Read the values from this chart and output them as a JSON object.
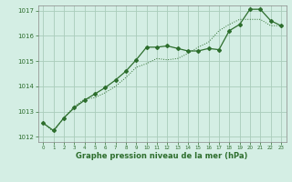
{
  "title": "",
  "xlabel": "Graphe pression niveau de la mer (hPa)",
  "background_color": "#d4eee4",
  "grid_color": "#aaccbb",
  "line_color": "#2d6e2d",
  "xlim": [
    -0.5,
    23.5
  ],
  "ylim": [
    1011.8,
    1017.2
  ],
  "yticks": [
    1012,
    1013,
    1014,
    1015,
    1016,
    1017
  ],
  "xticks": [
    0,
    1,
    2,
    3,
    4,
    5,
    6,
    7,
    8,
    9,
    10,
    11,
    12,
    13,
    14,
    15,
    16,
    17,
    18,
    19,
    20,
    21,
    22,
    23
  ],
  "line1_x": [
    0,
    1,
    2,
    3,
    4,
    5,
    6,
    7,
    8,
    9,
    10,
    11,
    12,
    13,
    14,
    15,
    16,
    17,
    18,
    19,
    20,
    21,
    22,
    23
  ],
  "line1_y": [
    1012.55,
    1012.25,
    1012.75,
    1013.15,
    1013.45,
    1013.7,
    1013.95,
    1014.25,
    1014.6,
    1015.05,
    1015.55,
    1015.55,
    1015.6,
    1015.5,
    1015.4,
    1015.4,
    1015.5,
    1015.45,
    1016.2,
    1016.45,
    1017.05,
    1017.05,
    1016.6,
    1016.4
  ],
  "line2_x": [
    0,
    1,
    2,
    3,
    4,
    5,
    6,
    7,
    8,
    9,
    10,
    11,
    12,
    13,
    14,
    15,
    16,
    17,
    18,
    19,
    20,
    21,
    22,
    23
  ],
  "line2_y": [
    1012.55,
    1012.2,
    1012.75,
    1013.2,
    1013.5,
    1013.55,
    1013.75,
    1014.0,
    1014.35,
    1014.75,
    1014.9,
    1015.1,
    1015.05,
    1015.1,
    1015.3,
    1015.55,
    1015.75,
    1016.2,
    1016.45,
    1016.65,
    1016.65,
    1016.65,
    1016.4,
    1016.4
  ]
}
